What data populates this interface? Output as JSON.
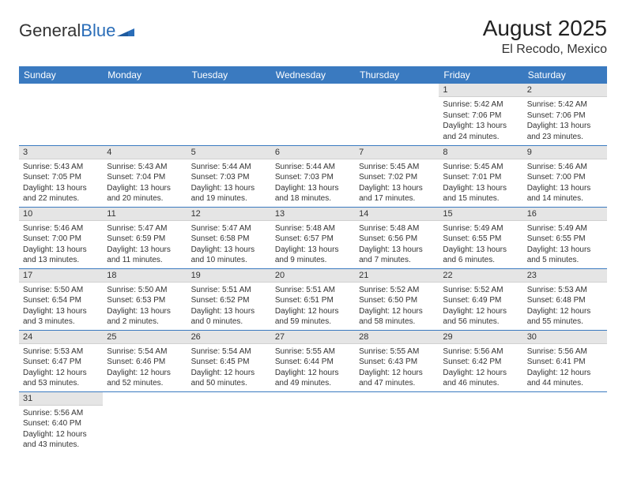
{
  "logo": {
    "text_a": "General",
    "text_b": "Blue"
  },
  "header": {
    "month": "August 2025",
    "location": "El Recodo, Mexico"
  },
  "colors": {
    "header_bg": "#3a7ac0",
    "header_text": "#ffffff",
    "daynum_bg": "#e5e5e5",
    "row_border": "#3a7ac0",
    "logo_blue": "#2a6db8"
  },
  "weekdays": [
    "Sunday",
    "Monday",
    "Tuesday",
    "Wednesday",
    "Thursday",
    "Friday",
    "Saturday"
  ],
  "weeks": [
    [
      null,
      null,
      null,
      null,
      null,
      {
        "n": "1",
        "sr": "Sunrise: 5:42 AM",
        "ss": "Sunset: 7:06 PM",
        "d1": "Daylight: 13 hours",
        "d2": "and 24 minutes."
      },
      {
        "n": "2",
        "sr": "Sunrise: 5:42 AM",
        "ss": "Sunset: 7:06 PM",
        "d1": "Daylight: 13 hours",
        "d2": "and 23 minutes."
      }
    ],
    [
      {
        "n": "3",
        "sr": "Sunrise: 5:43 AM",
        "ss": "Sunset: 7:05 PM",
        "d1": "Daylight: 13 hours",
        "d2": "and 22 minutes."
      },
      {
        "n": "4",
        "sr": "Sunrise: 5:43 AM",
        "ss": "Sunset: 7:04 PM",
        "d1": "Daylight: 13 hours",
        "d2": "and 20 minutes."
      },
      {
        "n": "5",
        "sr": "Sunrise: 5:44 AM",
        "ss": "Sunset: 7:03 PM",
        "d1": "Daylight: 13 hours",
        "d2": "and 19 minutes."
      },
      {
        "n": "6",
        "sr": "Sunrise: 5:44 AM",
        "ss": "Sunset: 7:03 PM",
        "d1": "Daylight: 13 hours",
        "d2": "and 18 minutes."
      },
      {
        "n": "7",
        "sr": "Sunrise: 5:45 AM",
        "ss": "Sunset: 7:02 PM",
        "d1": "Daylight: 13 hours",
        "d2": "and 17 minutes."
      },
      {
        "n": "8",
        "sr": "Sunrise: 5:45 AM",
        "ss": "Sunset: 7:01 PM",
        "d1": "Daylight: 13 hours",
        "d2": "and 15 minutes."
      },
      {
        "n": "9",
        "sr": "Sunrise: 5:46 AM",
        "ss": "Sunset: 7:00 PM",
        "d1": "Daylight: 13 hours",
        "d2": "and 14 minutes."
      }
    ],
    [
      {
        "n": "10",
        "sr": "Sunrise: 5:46 AM",
        "ss": "Sunset: 7:00 PM",
        "d1": "Daylight: 13 hours",
        "d2": "and 13 minutes."
      },
      {
        "n": "11",
        "sr": "Sunrise: 5:47 AM",
        "ss": "Sunset: 6:59 PM",
        "d1": "Daylight: 13 hours",
        "d2": "and 11 minutes."
      },
      {
        "n": "12",
        "sr": "Sunrise: 5:47 AM",
        "ss": "Sunset: 6:58 PM",
        "d1": "Daylight: 13 hours",
        "d2": "and 10 minutes."
      },
      {
        "n": "13",
        "sr": "Sunrise: 5:48 AM",
        "ss": "Sunset: 6:57 PM",
        "d1": "Daylight: 13 hours",
        "d2": "and 9 minutes."
      },
      {
        "n": "14",
        "sr": "Sunrise: 5:48 AM",
        "ss": "Sunset: 6:56 PM",
        "d1": "Daylight: 13 hours",
        "d2": "and 7 minutes."
      },
      {
        "n": "15",
        "sr": "Sunrise: 5:49 AM",
        "ss": "Sunset: 6:55 PM",
        "d1": "Daylight: 13 hours",
        "d2": "and 6 minutes."
      },
      {
        "n": "16",
        "sr": "Sunrise: 5:49 AM",
        "ss": "Sunset: 6:55 PM",
        "d1": "Daylight: 13 hours",
        "d2": "and 5 minutes."
      }
    ],
    [
      {
        "n": "17",
        "sr": "Sunrise: 5:50 AM",
        "ss": "Sunset: 6:54 PM",
        "d1": "Daylight: 13 hours",
        "d2": "and 3 minutes."
      },
      {
        "n": "18",
        "sr": "Sunrise: 5:50 AM",
        "ss": "Sunset: 6:53 PM",
        "d1": "Daylight: 13 hours",
        "d2": "and 2 minutes."
      },
      {
        "n": "19",
        "sr": "Sunrise: 5:51 AM",
        "ss": "Sunset: 6:52 PM",
        "d1": "Daylight: 13 hours",
        "d2": "and 0 minutes."
      },
      {
        "n": "20",
        "sr": "Sunrise: 5:51 AM",
        "ss": "Sunset: 6:51 PM",
        "d1": "Daylight: 12 hours",
        "d2": "and 59 minutes."
      },
      {
        "n": "21",
        "sr": "Sunrise: 5:52 AM",
        "ss": "Sunset: 6:50 PM",
        "d1": "Daylight: 12 hours",
        "d2": "and 58 minutes."
      },
      {
        "n": "22",
        "sr": "Sunrise: 5:52 AM",
        "ss": "Sunset: 6:49 PM",
        "d1": "Daylight: 12 hours",
        "d2": "and 56 minutes."
      },
      {
        "n": "23",
        "sr": "Sunrise: 5:53 AM",
        "ss": "Sunset: 6:48 PM",
        "d1": "Daylight: 12 hours",
        "d2": "and 55 minutes."
      }
    ],
    [
      {
        "n": "24",
        "sr": "Sunrise: 5:53 AM",
        "ss": "Sunset: 6:47 PM",
        "d1": "Daylight: 12 hours",
        "d2": "and 53 minutes."
      },
      {
        "n": "25",
        "sr": "Sunrise: 5:54 AM",
        "ss": "Sunset: 6:46 PM",
        "d1": "Daylight: 12 hours",
        "d2": "and 52 minutes."
      },
      {
        "n": "26",
        "sr": "Sunrise: 5:54 AM",
        "ss": "Sunset: 6:45 PM",
        "d1": "Daylight: 12 hours",
        "d2": "and 50 minutes."
      },
      {
        "n": "27",
        "sr": "Sunrise: 5:55 AM",
        "ss": "Sunset: 6:44 PM",
        "d1": "Daylight: 12 hours",
        "d2": "and 49 minutes."
      },
      {
        "n": "28",
        "sr": "Sunrise: 5:55 AM",
        "ss": "Sunset: 6:43 PM",
        "d1": "Daylight: 12 hours",
        "d2": "and 47 minutes."
      },
      {
        "n": "29",
        "sr": "Sunrise: 5:56 AM",
        "ss": "Sunset: 6:42 PM",
        "d1": "Daylight: 12 hours",
        "d2": "and 46 minutes."
      },
      {
        "n": "30",
        "sr": "Sunrise: 5:56 AM",
        "ss": "Sunset: 6:41 PM",
        "d1": "Daylight: 12 hours",
        "d2": "and 44 minutes."
      }
    ],
    [
      {
        "n": "31",
        "sr": "Sunrise: 5:56 AM",
        "ss": "Sunset: 6:40 PM",
        "d1": "Daylight: 12 hours",
        "d2": "and 43 minutes."
      },
      null,
      null,
      null,
      null,
      null,
      null
    ]
  ]
}
